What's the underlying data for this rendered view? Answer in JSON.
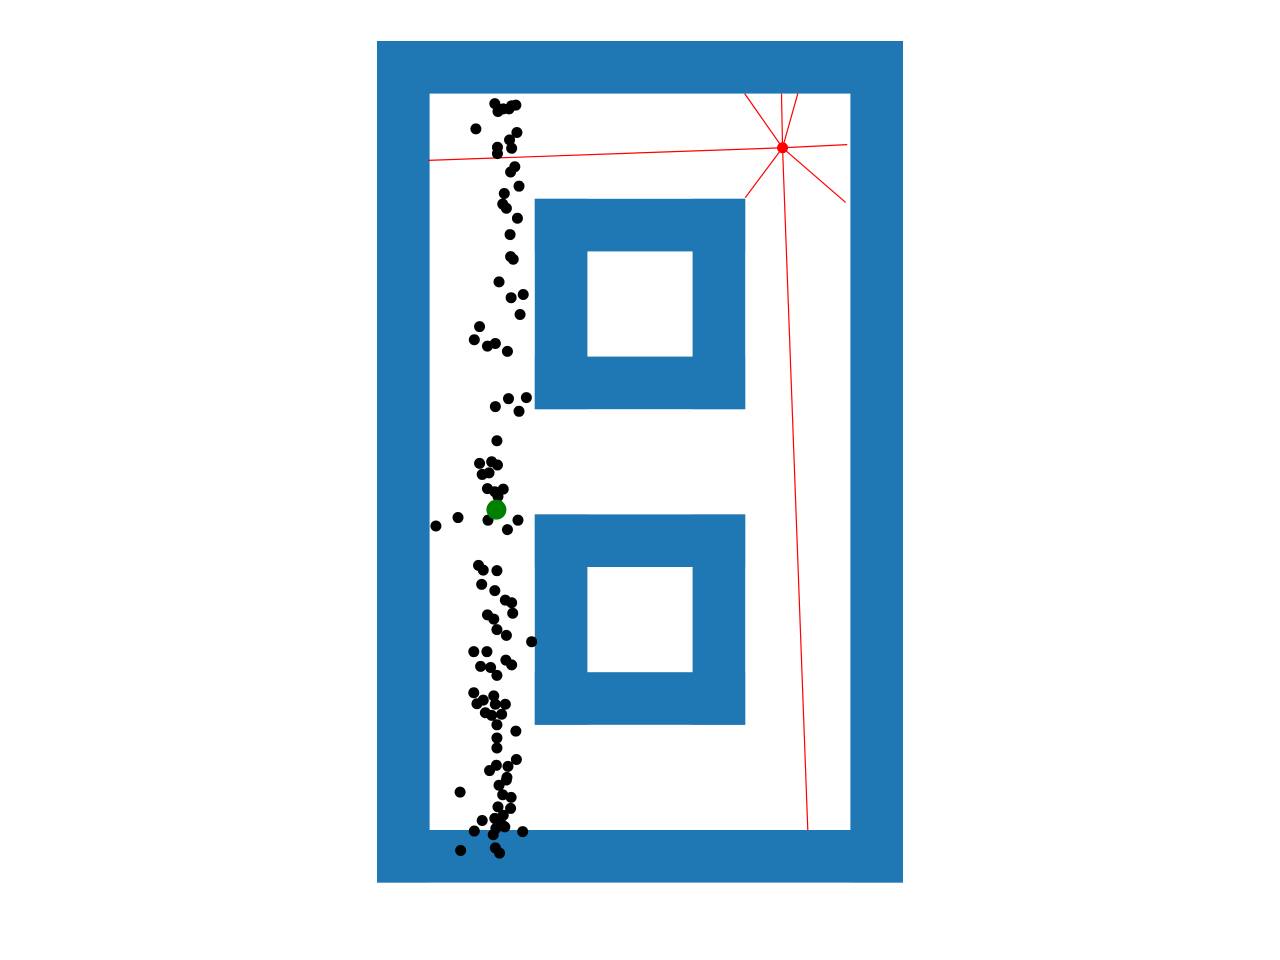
{
  "scene": {
    "type": "particle-filter-localization",
    "units": "cells",
    "colors": {
      "background": "#ffffff",
      "wall": "#1f77b4",
      "particle": "#000000",
      "estimate": "#008000",
      "robot": "#ff0000",
      "ray": "#ff0000"
    },
    "map": {
      "width": 10,
      "height": 16,
      "walls": [
        {
          "name": "wall-top",
          "x": 0,
          "y": 0,
          "w": 10,
          "h": 1
        },
        {
          "name": "wall-bottom",
          "x": 0,
          "y": 15,
          "w": 10,
          "h": 1
        },
        {
          "name": "wall-left",
          "x": 0,
          "y": 0,
          "w": 1,
          "h": 16
        },
        {
          "name": "wall-right",
          "x": 9,
          "y": 0,
          "w": 1,
          "h": 16
        },
        {
          "name": "block-upper-top",
          "x": 3,
          "y": 3,
          "w": 4,
          "h": 1
        },
        {
          "name": "block-upper-bottom",
          "x": 3,
          "y": 6,
          "w": 4,
          "h": 1
        },
        {
          "name": "block-upper-left",
          "x": 3,
          "y": 3,
          "w": 1,
          "h": 4
        },
        {
          "name": "block-upper-right",
          "x": 6,
          "y": 3,
          "w": 1,
          "h": 4
        },
        {
          "name": "block-lower-top",
          "x": 3,
          "y": 9,
          "w": 4,
          "h": 1
        },
        {
          "name": "block-lower-bottom",
          "x": 3,
          "y": 12,
          "w": 4,
          "h": 1
        },
        {
          "name": "block-lower-left",
          "x": 3,
          "y": 9,
          "w": 1,
          "h": 4
        },
        {
          "name": "block-lower-right",
          "x": 6,
          "y": 9,
          "w": 1,
          "h": 4
        }
      ]
    },
    "robot": {
      "x": 7.71,
      "y": 2.03
    },
    "rays": [
      {
        "x2": 7.69,
        "y2": 1.0
      },
      {
        "x2": 8.0,
        "y2": 1.0
      },
      {
        "x2": 8.94,
        "y2": 1.97
      },
      {
        "x2": 8.91,
        "y2": 3.07
      },
      {
        "x2": 8.19,
        "y2": 15.0
      },
      {
        "x2": 7.0,
        "y2": 2.98
      },
      {
        "x2": 0.97,
        "y2": 2.27
      },
      {
        "x2": 6.99,
        "y2": 1.0
      }
    ],
    "estimate": {
      "x": 2.27,
      "y": 8.91
    },
    "particles": [
      [
        2.24,
        1.19
      ],
      [
        2.4,
        1.29
      ],
      [
        2.51,
        1.29
      ],
      [
        2.3,
        1.34
      ],
      [
        2.56,
        1.23
      ],
      [
        2.64,
        1.22
      ],
      [
        1.88,
        1.67
      ],
      [
        2.29,
        2.02
      ],
      [
        2.29,
        2.14
      ],
      [
        2.52,
        1.88
      ],
      [
        2.56,
        2.04
      ],
      [
        2.66,
        1.74
      ],
      [
        2.54,
        2.49
      ],
      [
        2.62,
        2.39
      ],
      [
        2.42,
        2.9
      ],
      [
        2.7,
        2.76
      ],
      [
        2.39,
        3.1
      ],
      [
        2.46,
        3.18
      ],
      [
        2.67,
        3.37
      ],
      [
        2.53,
        3.68
      ],
      [
        2.54,
        4.1
      ],
      [
        2.59,
        4.15
      ],
      [
        2.32,
        4.58
      ],
      [
        2.55,
        4.88
      ],
      [
        2.78,
        4.82
      ],
      [
        2.72,
        5.2
      ],
      [
        1.95,
        5.43
      ],
      [
        1.85,
        5.68
      ],
      [
        2.1,
        5.8
      ],
      [
        2.25,
        5.75
      ],
      [
        2.48,
        5.9
      ],
      [
        2.5,
        6.8
      ],
      [
        2.25,
        6.95
      ],
      [
        2.84,
        6.78
      ],
      [
        2.7,
        7.04
      ],
      [
        2.28,
        7.6
      ],
      [
        1.95,
        8.03
      ],
      [
        2.18,
        8.0
      ],
      [
        2.29,
        8.06
      ],
      [
        2.0,
        8.24
      ],
      [
        2.13,
        8.21
      ],
      [
        2.1,
        8.51
      ],
      [
        2.24,
        8.57
      ],
      [
        2.4,
        8.52
      ],
      [
        2.3,
        8.66
      ],
      [
        2.25,
        8.86
      ],
      [
        1.12,
        9.22
      ],
      [
        1.54,
        9.06
      ],
      [
        2.11,
        9.11
      ],
      [
        2.68,
        9.11
      ],
      [
        2.48,
        9.29
      ],
      [
        1.93,
        9.97
      ],
      [
        2.02,
        10.06
      ],
      [
        2.28,
        10.07
      ],
      [
        1.99,
        10.33
      ],
      [
        2.24,
        10.45
      ],
      [
        2.44,
        10.63
      ],
      [
        2.56,
        10.68
      ],
      [
        2.58,
        10.88
      ],
      [
        2.1,
        10.91
      ],
      [
        2.22,
        10.99
      ],
      [
        2.28,
        11.19
      ],
      [
        2.46,
        11.3
      ],
      [
        2.94,
        11.42
      ],
      [
        1.84,
        11.61
      ],
      [
        2.09,
        11.61
      ],
      [
        1.97,
        11.89
      ],
      [
        2.16,
        11.91
      ],
      [
        2.28,
        12.06
      ],
      [
        2.45,
        11.77
      ],
      [
        2.56,
        11.86
      ],
      [
        1.84,
        12.39
      ],
      [
        1.9,
        12.6
      ],
      [
        2.02,
        12.53
      ],
      [
        2.22,
        12.45
      ],
      [
        2.25,
        12.61
      ],
      [
        2.06,
        12.77
      ],
      [
        2.18,
        12.82
      ],
      [
        2.37,
        12.8
      ],
      [
        2.44,
        12.61
      ],
      [
        2.28,
        13.0
      ],
      [
        2.28,
        13.25
      ],
      [
        2.28,
        13.44
      ],
      [
        2.64,
        13.12
      ],
      [
        2.27,
        13.77
      ],
      [
        2.14,
        13.87
      ],
      [
        2.49,
        13.79
      ],
      [
        2.65,
        13.66
      ],
      [
        2.47,
        14.0
      ],
      [
        1.58,
        14.28
      ],
      [
        2.32,
        14.15
      ],
      [
        2.39,
        14.33
      ],
      [
        2.55,
        14.38
      ],
      [
        2.3,
        14.56
      ],
      [
        2.54,
        14.59
      ],
      [
        2.0,
        14.82
      ],
      [
        2.24,
        14.78
      ],
      [
        2.38,
        14.9
      ],
      [
        1.85,
        15.02
      ],
      [
        2.21,
        15.09
      ],
      [
        2.43,
        14.94
      ],
      [
        2.77,
        15.03
      ],
      [
        1.59,
        15.39
      ],
      [
        2.25,
        15.34
      ],
      [
        2.33,
        15.44
      ],
      [
        2.26,
        14.97
      ],
      [
        2.4,
        14.72
      ],
      [
        2.33,
        14.82
      ],
      [
        2.46,
        14.05
      ]
    ]
  }
}
